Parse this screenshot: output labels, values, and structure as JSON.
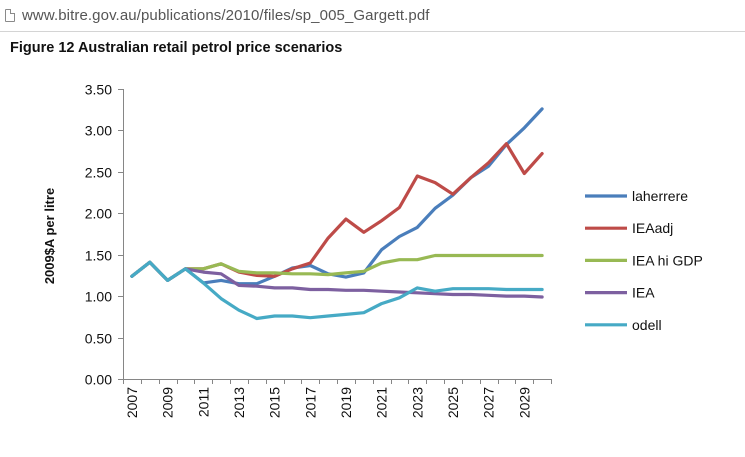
{
  "browser": {
    "url": "www.bitre.gov.au/publications/2010/files/sp_005_Gargett.pdf",
    "page_icon": "page-icon"
  },
  "figure": {
    "title": "Figure 12 Australian retail petrol price scenarios"
  },
  "chart_data": {
    "type": "line",
    "title": "Figure 12 Australian retail petrol price scenarios",
    "xlabel": "",
    "ylabel": "2009$A per litre",
    "ylim": [
      0,
      3.5
    ],
    "y_ticks": [
      "0.00",
      "0.50",
      "1.00",
      "1.50",
      "2.00",
      "2.50",
      "3.00",
      "3.50"
    ],
    "x_tick_labels": [
      "2007",
      "2009",
      "2011",
      "2013",
      "2015",
      "2017",
      "2019",
      "2021",
      "2023",
      "2025",
      "2027",
      "2029"
    ],
    "x": [
      2007,
      2008,
      2009,
      2010,
      2011,
      2012,
      2013,
      2014,
      2015,
      2016,
      2017,
      2018,
      2019,
      2020,
      2021,
      2022,
      2023,
      2024,
      2025,
      2026,
      2027,
      2028,
      2029,
      2030
    ],
    "grid": false,
    "legend_position": "right",
    "series": [
      {
        "name": "laherrere",
        "color": "#4a7ebb",
        "values": [
          1.24,
          1.41,
          1.19,
          1.33,
          1.16,
          1.19,
          1.15,
          1.15,
          1.24,
          1.34,
          1.37,
          1.27,
          1.23,
          1.28,
          1.56,
          1.72,
          1.83,
          2.06,
          2.22,
          2.43,
          2.57,
          2.83,
          3.03,
          3.26
        ]
      },
      {
        "name": "IEAadj",
        "color": "#be4b48",
        "values": [
          1.24,
          1.41,
          1.19,
          1.33,
          1.33,
          1.39,
          1.29,
          1.25,
          1.24,
          1.33,
          1.4,
          1.7,
          1.93,
          1.77,
          1.91,
          2.07,
          2.45,
          2.37,
          2.23,
          2.43,
          2.61,
          2.84,
          2.48,
          2.72
        ]
      },
      {
        "name": "IEA hi GDP",
        "color": "#98b954",
        "values": [
          1.24,
          1.41,
          1.19,
          1.33,
          1.33,
          1.39,
          1.3,
          1.28,
          1.28,
          1.27,
          1.27,
          1.26,
          1.28,
          1.3,
          1.4,
          1.44,
          1.44,
          1.49,
          1.49,
          1.49,
          1.49,
          1.49,
          1.49,
          1.49
        ]
      },
      {
        "name": "IEA",
        "color": "#7d60a0",
        "values": [
          1.24,
          1.41,
          1.19,
          1.33,
          1.29,
          1.27,
          1.13,
          1.12,
          1.1,
          1.1,
          1.08,
          1.08,
          1.07,
          1.07,
          1.06,
          1.05,
          1.04,
          1.03,
          1.02,
          1.02,
          1.01,
          1.0,
          1.0,
          0.99
        ]
      },
      {
        "name": "odell",
        "color": "#46aac5",
        "values": [
          1.24,
          1.41,
          1.19,
          1.33,
          1.16,
          0.97,
          0.83,
          0.73,
          0.76,
          0.76,
          0.74,
          0.76,
          0.78,
          0.8,
          0.91,
          0.98,
          1.1,
          1.06,
          1.09,
          1.09,
          1.09,
          1.08,
          1.08,
          1.08
        ]
      }
    ]
  }
}
